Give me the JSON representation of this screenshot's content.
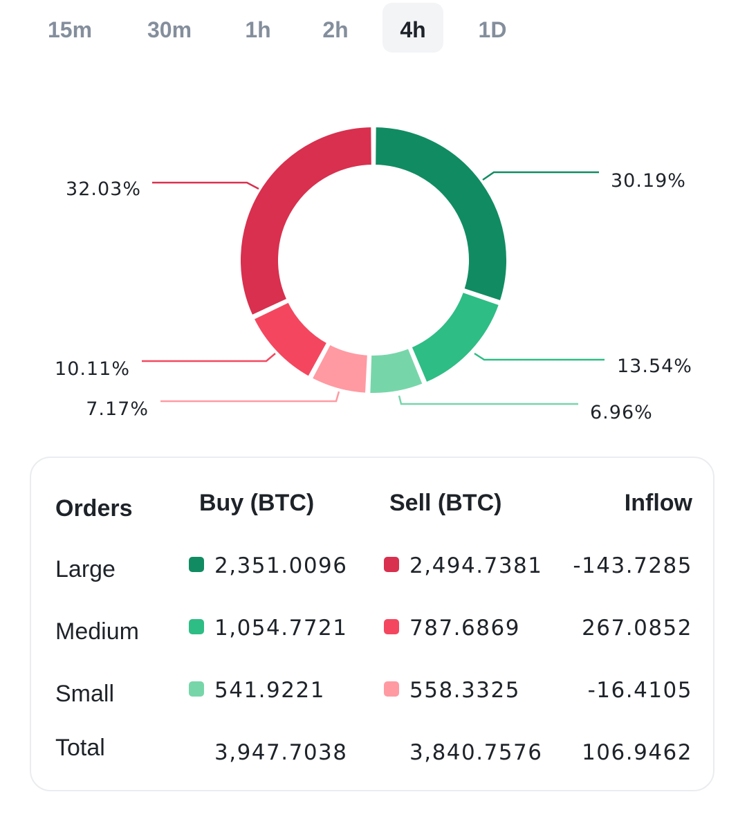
{
  "tabs": [
    {
      "label": "15m",
      "active": false
    },
    {
      "label": "30m",
      "active": false
    },
    {
      "label": "1h",
      "active": false
    },
    {
      "label": "2h",
      "active": false
    },
    {
      "label": "4h",
      "active": true
    },
    {
      "label": "1D",
      "active": false
    }
  ],
  "colors": {
    "buy_large": "#118c62",
    "buy_medium": "#2ebd85",
    "buy_small": "#76d6aa",
    "sell_large": "#d8304e",
    "sell_medium": "#f4475f",
    "sell_small": "#ff9aa2"
  },
  "chart_data": {
    "type": "pie",
    "style": "donut",
    "slices": [
      {
        "label": "Buy Large",
        "value": 30.19,
        "display": "30.19%",
        "color": "#118c62"
      },
      {
        "label": "Buy Medium",
        "value": 13.54,
        "display": "13.54%",
        "color": "#2ebd85"
      },
      {
        "label": "Buy Small",
        "value": 6.96,
        "display": "6.96%",
        "color": "#76d6aa"
      },
      {
        "label": "Sell Small",
        "value": 7.17,
        "display": "7.17%",
        "color": "#ff9aa2"
      },
      {
        "label": "Sell Medium",
        "value": 10.11,
        "display": "10.11%",
        "color": "#f4475f"
      },
      {
        "label": "Sell Large",
        "value": 32.03,
        "display": "32.03%",
        "color": "#d8304e"
      }
    ]
  },
  "table": {
    "headers": {
      "orders": "Orders",
      "buy": "Buy (BTC)",
      "sell": "Sell (BTC)",
      "inflow": "Inflow"
    },
    "rows": [
      {
        "label": "Large",
        "buy": "2,351.0096",
        "sell": "2,494.7381",
        "inflow": "-143.7285",
        "buy_color": "#118c62",
        "sell_color": "#d8304e"
      },
      {
        "label": "Medium",
        "buy": "1,054.7721",
        "sell": "787.6869",
        "inflow": "267.0852",
        "buy_color": "#2ebd85",
        "sell_color": "#f4475f"
      },
      {
        "label": "Small",
        "buy": "541.9221",
        "sell": "558.3325",
        "inflow": "-16.4105",
        "buy_color": "#76d6aa",
        "sell_color": "#ff9aa2"
      }
    ],
    "total": {
      "label": "Total",
      "buy": "3,947.7038",
      "sell": "3,840.7576",
      "inflow": "106.9462"
    }
  }
}
